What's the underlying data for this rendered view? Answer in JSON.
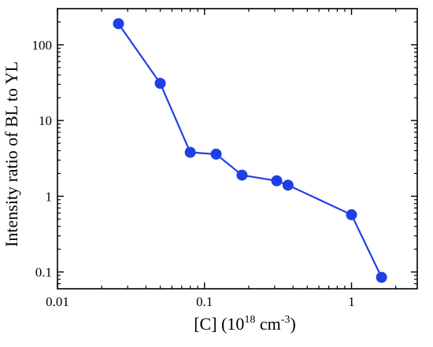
{
  "chart_data": {
    "type": "line",
    "xscale": "log",
    "yscale": "log",
    "xlim": [
      0.01,
      2.8
    ],
    "ylim": [
      0.06,
      300
    ],
    "xlabel": {
      "base": "[C] (10",
      "sup1": "18",
      "mid": " cm",
      "sup2": "-3",
      "end": ")"
    },
    "ylabel": "Intensity ratio of BL to YL",
    "xticks": [
      {
        "value": 0.01,
        "label": "0.01"
      },
      {
        "value": 0.1,
        "label": "0.1"
      },
      {
        "value": 1,
        "label": "1"
      }
    ],
    "yticks": [
      {
        "value": 0.1,
        "label": "0.1"
      },
      {
        "value": 1,
        "label": "1"
      },
      {
        "value": 10,
        "label": "10"
      },
      {
        "value": 100,
        "label": "100"
      }
    ],
    "grid": false,
    "legend": "none",
    "color": "#1f3fe6",
    "series": [
      {
        "x": [
          0.026,
          0.05,
          0.08,
          0.12,
          0.18,
          0.31,
          0.37,
          1.0,
          1.6
        ],
        "y": [
          190,
          31,
          3.8,
          3.6,
          1.9,
          1.6,
          1.4,
          0.57,
          0.085
        ]
      }
    ]
  }
}
